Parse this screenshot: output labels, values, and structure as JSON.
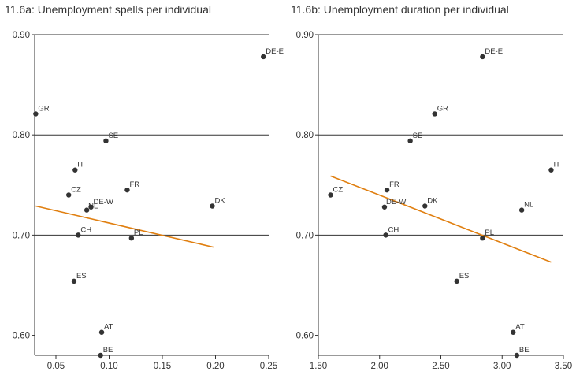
{
  "chart_data": [
    {
      "type": "scatter",
      "title": "11.6a: Unemployment spells per individual",
      "xlim": [
        0.03,
        0.25
      ],
      "ylim": [
        0.58,
        0.9
      ],
      "xticks": [
        "0.05",
        "0.10",
        "0.15",
        "0.20",
        "0.25"
      ],
      "yticks": [
        "0.60",
        "0.70",
        "0.80",
        "0.90"
      ],
      "gridlines_y": [
        0.7,
        0.8,
        0.9
      ],
      "points": [
        {
          "label": "DE-E",
          "x": 0.245,
          "y": 0.878
        },
        {
          "label": "GR",
          "x": 0.031,
          "y": 0.821
        },
        {
          "label": "SE",
          "x": 0.097,
          "y": 0.794
        },
        {
          "label": "IT",
          "x": 0.068,
          "y": 0.765
        },
        {
          "label": "CZ",
          "x": 0.062,
          "y": 0.74
        },
        {
          "label": "FR",
          "x": 0.117,
          "y": 0.745
        },
        {
          "label": "DK",
          "x": 0.197,
          "y": 0.729
        },
        {
          "label": "DE-W",
          "x": 0.083,
          "y": 0.728
        },
        {
          "label": "NL",
          "x": 0.079,
          "y": 0.725
        },
        {
          "label": "CH",
          "x": 0.071,
          "y": 0.7
        },
        {
          "label": "PL",
          "x": 0.121,
          "y": 0.697
        },
        {
          "label": "ES",
          "x": 0.067,
          "y": 0.654
        },
        {
          "label": "AT",
          "x": 0.093,
          "y": 0.603
        },
        {
          "label": "BE",
          "x": 0.092,
          "y": 0.58
        }
      ],
      "fit_line": {
        "x": [
          0.031,
          0.198
        ],
        "y": [
          0.729,
          0.688
        ],
        "color": "#E07F10"
      }
    },
    {
      "type": "scatter",
      "title": "11.6b: Unemployment duration per individual",
      "xlim": [
        1.5,
        3.5
      ],
      "ylim": [
        0.58,
        0.9
      ],
      "xticks": [
        "1.50",
        "2.00",
        "2.50",
        "3.00",
        "3.50"
      ],
      "yticks": [
        "0.60",
        "0.70",
        "0.80",
        "0.90"
      ],
      "gridlines_y": [
        0.7,
        0.8,
        0.9
      ],
      "points": [
        {
          "label": "DE-E",
          "x": 2.84,
          "y": 0.878
        },
        {
          "label": "GR",
          "x": 2.45,
          "y": 0.821
        },
        {
          "label": "SE",
          "x": 2.25,
          "y": 0.794
        },
        {
          "label": "IT",
          "x": 3.4,
          "y": 0.765
        },
        {
          "label": "FR",
          "x": 2.06,
          "y": 0.745
        },
        {
          "label": "CZ",
          "x": 1.6,
          "y": 0.74
        },
        {
          "label": "DE-W",
          "x": 2.04,
          "y": 0.728
        },
        {
          "label": "DK",
          "x": 2.37,
          "y": 0.729
        },
        {
          "label": "NL",
          "x": 3.16,
          "y": 0.725
        },
        {
          "label": "CH",
          "x": 2.05,
          "y": 0.7
        },
        {
          "label": "PL",
          "x": 2.84,
          "y": 0.697
        },
        {
          "label": "ES",
          "x": 2.63,
          "y": 0.654
        },
        {
          "label": "AT",
          "x": 3.09,
          "y": 0.603
        },
        {
          "label": "BE",
          "x": 3.12,
          "y": 0.58
        }
      ],
      "fit_line": {
        "x": [
          1.6,
          3.4
        ],
        "y": [
          0.759,
          0.673
        ],
        "color": "#E07F10"
      }
    }
  ]
}
